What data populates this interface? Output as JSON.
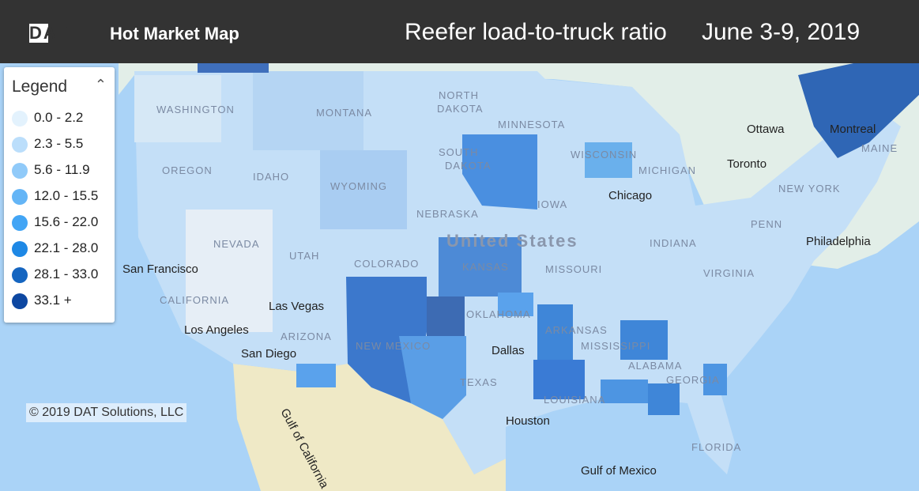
{
  "header": {
    "logo": "DAT",
    "app_name": "Hot Market Map",
    "title": "Reefer load-to-truck ratio",
    "date": "June 3-9, 2019"
  },
  "legend": {
    "title": "Legend",
    "items": [
      {
        "label": "0.0 - 2.2",
        "color": "#e3f2fd"
      },
      {
        "label": "2.3 - 5.5",
        "color": "#bbdefb"
      },
      {
        "label": "5.6 - 11.9",
        "color": "#90caf9"
      },
      {
        "label": "12.0 - 15.5",
        "color": "#64b5f6"
      },
      {
        "label": "15.6 - 22.0",
        "color": "#42a5f5"
      },
      {
        "label": "22.1 - 28.0",
        "color": "#1e88e5"
      },
      {
        "label": "28.1 - 33.0",
        "color": "#1565c0"
      },
      {
        "label": "33.1 +",
        "color": "#0d47a1"
      }
    ]
  },
  "map_labels": [
    "United States",
    "San Francisco",
    "Las Vegas",
    "Los Angeles",
    "San Diego",
    "Dallas",
    "Houston",
    "Chicago",
    "Philadelphia",
    "Toronto",
    "Ottawa",
    "Montreal",
    "Gulf of California",
    "Gulf of Mexico",
    "WASHINGTON",
    "MONTANA",
    "NORTH",
    "DAKOTA",
    "MINNESOTA",
    "OREGON",
    "IDAHO",
    "SOUTH",
    "DAKOTA",
    "WISCONSIN",
    "MICHIGAN",
    "WYOMING",
    "NEBRASKA",
    "IOWA",
    "NEVADA",
    "UTAH",
    "COLORADO",
    "KANSAS",
    "MISSOURI",
    "INDIANA",
    "PENN",
    "NEW YORK",
    "MAINE",
    "VIRGINIA",
    "CALIFORNIA",
    "ARIZONA",
    "NEW MEXICO",
    "OKLAHOMA",
    "ARKANSAS",
    "MISSISSIPPI",
    "ALABAMA",
    "GEORGIA",
    "TEXAS",
    "LOUISIANA",
    "FLORIDA"
  ],
  "copyright": "© 2019 DAT Solutions, LLC"
}
